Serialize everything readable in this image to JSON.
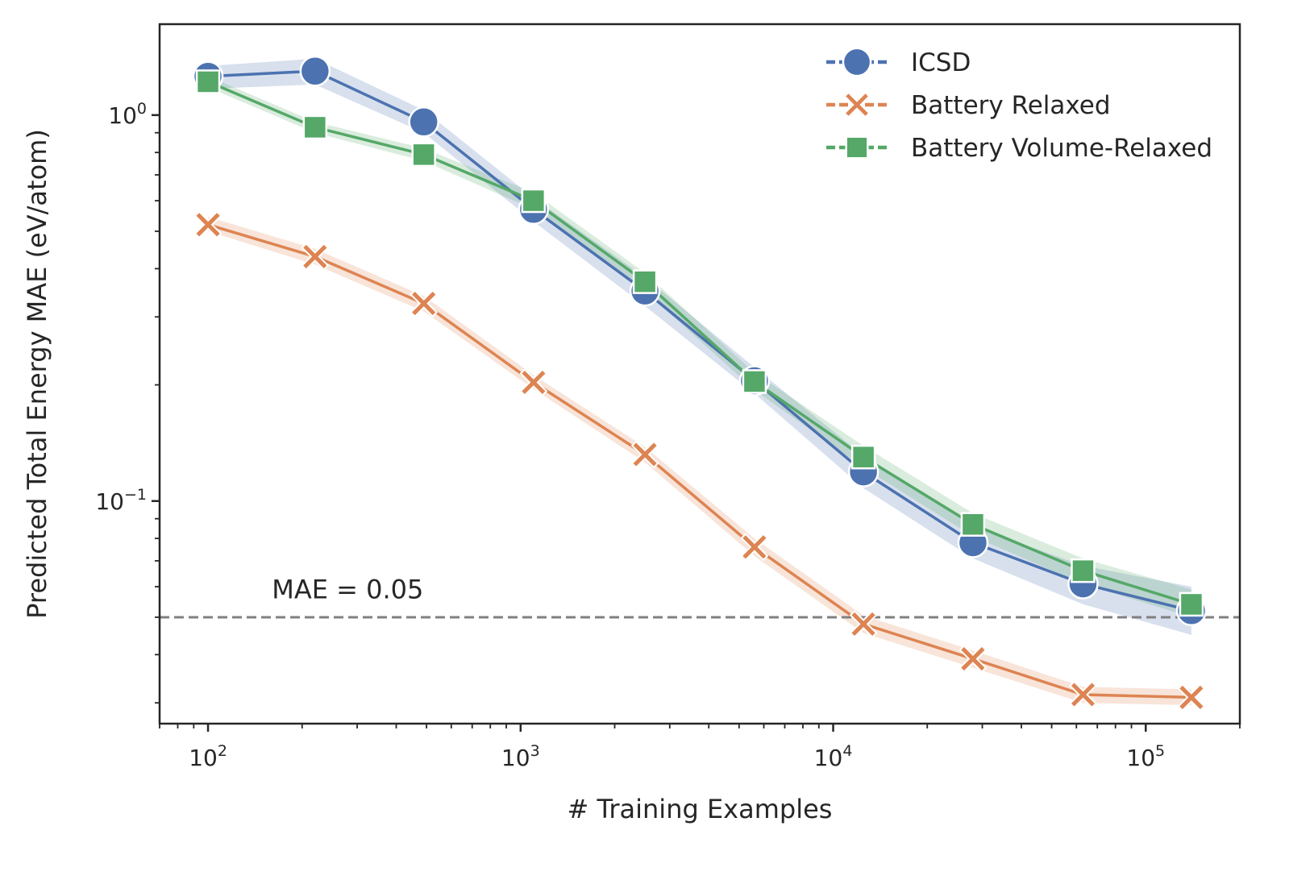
{
  "chart_data": {
    "type": "line",
    "xlabel": "# Training Examples",
    "ylabel": "Predicted Total Energy MAE (eV/atom)",
    "xscale": "log",
    "yscale": "log",
    "xlim": [
      70,
      200000
    ],
    "ylim": [
      0.0265,
      1.72
    ],
    "x_ticks": [
      {
        "value": 100,
        "base": "10",
        "exp": "2"
      },
      {
        "value": 1000,
        "base": "10",
        "exp": "3"
      },
      {
        "value": 10000,
        "base": "10",
        "exp": "4"
      },
      {
        "value": 100000,
        "base": "10",
        "exp": "5"
      }
    ],
    "y_ticks": [
      {
        "value": 1.0,
        "base": "10",
        "exp": "0"
      },
      {
        "value": 0.1,
        "base": "10",
        "exp": "−1"
      }
    ],
    "grid": false,
    "legend_position": "top-right",
    "x": [
      100,
      220,
      490,
      1100,
      2500,
      5600,
      12500,
      28000,
      63000,
      140000
    ],
    "series": [
      {
        "name": "ICSD",
        "marker": "circle",
        "color": "#4c72b0",
        "values": [
          1.26,
          1.3,
          0.96,
          0.57,
          0.35,
          0.205,
          0.119,
          0.078,
          0.061,
          0.052
        ],
        "band_low": [
          1.17,
          1.2,
          0.9,
          0.53,
          0.32,
          0.19,
          0.108,
          0.071,
          0.054,
          0.045
        ],
        "band_high": [
          1.34,
          1.4,
          1.03,
          0.61,
          0.38,
          0.222,
          0.131,
          0.086,
          0.068,
          0.06
        ]
      },
      {
        "name": "Battery Relaxed",
        "marker": "x",
        "color": "#dd8452",
        "values": [
          0.52,
          0.43,
          0.325,
          0.203,
          0.132,
          0.076,
          0.048,
          0.039,
          0.0315,
          0.031
        ],
        "band_low": [
          0.5,
          0.41,
          0.31,
          0.195,
          0.126,
          0.072,
          0.0455,
          0.037,
          0.03,
          0.0296
        ],
        "band_high": [
          0.545,
          0.45,
          0.34,
          0.212,
          0.138,
          0.08,
          0.0505,
          0.041,
          0.033,
          0.0325
        ]
      },
      {
        "name": "Battery Volume-Relaxed",
        "marker": "square",
        "color": "#55a868",
        "values": [
          1.22,
          0.93,
          0.79,
          0.6,
          0.37,
          0.204,
          0.13,
          0.087,
          0.066,
          0.054
        ],
        "band_low": [
          1.18,
          0.9,
          0.76,
          0.57,
          0.35,
          0.194,
          0.122,
          0.081,
          0.061,
          0.05
        ],
        "band_high": [
          1.26,
          0.96,
          0.82,
          0.63,
          0.39,
          0.215,
          0.139,
          0.093,
          0.071,
          0.059
        ]
      }
    ],
    "reference_line": {
      "value": 0.05,
      "label": "MAE = 0.05",
      "color": "#808080",
      "label_x": 160,
      "label_y": 0.056
    }
  }
}
